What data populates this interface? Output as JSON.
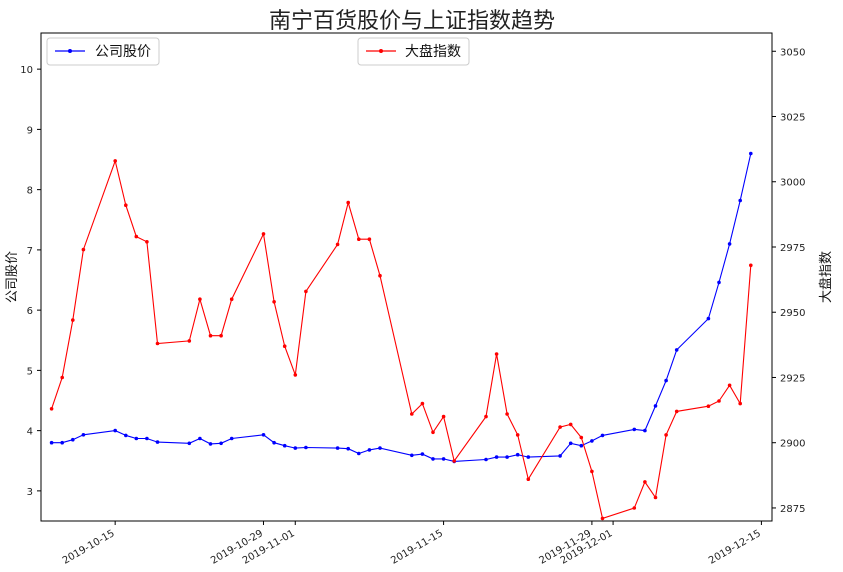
{
  "chart_data": {
    "type": "line",
    "title": "南宁百货股价与上证指数趋势",
    "ylabel_left": "公司股价",
    "ylabel_right": "大盘指数",
    "x_tick_labels": [
      "2019-10-15",
      "2019-10-29",
      "2019-11-01",
      "2019-11-15",
      "2019-11-29",
      "2019-12-01",
      "2019-12-15"
    ],
    "x_range": [
      "2019-10-08",
      "2019-12-16"
    ],
    "ylim_left": [
      2.5,
      10.6
    ],
    "ylim_right": [
      2870,
      3057
    ],
    "left_ticks": [
      3,
      4,
      5,
      6,
      7,
      8,
      9,
      10
    ],
    "right_ticks": [
      2875,
      2900,
      2925,
      2950,
      2975,
      3000,
      3025,
      3050
    ],
    "legend_left_position": "upper left",
    "legend_right_position": "upper center",
    "series": [
      {
        "name": "公司股价",
        "axis": "left",
        "color": "#0000ff",
        "x": [
          "2019-10-09",
          "2019-10-10",
          "2019-10-11",
          "2019-10-12",
          "2019-10-15",
          "2019-10-16",
          "2019-10-17",
          "2019-10-18",
          "2019-10-19",
          "2019-10-22",
          "2019-10-23",
          "2019-10-24",
          "2019-10-25",
          "2019-10-26",
          "2019-10-29",
          "2019-10-30",
          "2019-10-31",
          "2019-11-01",
          "2019-11-02",
          "2019-11-05",
          "2019-11-06",
          "2019-11-07",
          "2019-11-08",
          "2019-11-09",
          "2019-11-12",
          "2019-11-13",
          "2019-11-14",
          "2019-11-15",
          "2019-11-16",
          "2019-11-19",
          "2019-11-20",
          "2019-11-21",
          "2019-11-22",
          "2019-11-23",
          "2019-11-26",
          "2019-11-27",
          "2019-11-28",
          "2019-11-29",
          "2019-11-30",
          "2019-12-03",
          "2019-12-04",
          "2019-12-05",
          "2019-12-06",
          "2019-12-07",
          "2019-12-10",
          "2019-12-11",
          "2019-12-12",
          "2019-12-13",
          "2019-12-14"
        ],
        "values": [
          3.8,
          3.8,
          3.85,
          3.93,
          4.0,
          3.92,
          3.87,
          3.87,
          3.81,
          3.79,
          3.87,
          3.78,
          3.79,
          3.87,
          3.93,
          3.8,
          3.75,
          3.71,
          3.72,
          3.71,
          3.7,
          3.62,
          3.68,
          3.71,
          3.59,
          3.61,
          3.53,
          3.53,
          3.49,
          3.52,
          3.56,
          3.56,
          3.6,
          3.56,
          3.58,
          3.79,
          3.75,
          3.83,
          3.92,
          4.02,
          4.0,
          4.41,
          4.83,
          5.34,
          5.86,
          6.46,
          7.1,
          7.82,
          8.6
        ]
      },
      {
        "name": "大盘指数",
        "axis": "right",
        "color": "#ff0000",
        "x": [
          "2019-10-09",
          "2019-10-10",
          "2019-10-11",
          "2019-10-12",
          "2019-10-15",
          "2019-10-16",
          "2019-10-17",
          "2019-10-18",
          "2019-10-19",
          "2019-10-22",
          "2019-10-23",
          "2019-10-24",
          "2019-10-25",
          "2019-10-26",
          "2019-10-29",
          "2019-10-30",
          "2019-10-31",
          "2019-11-01",
          "2019-11-02",
          "2019-11-05",
          "2019-11-06",
          "2019-11-07",
          "2019-11-08",
          "2019-11-09",
          "2019-11-12",
          "2019-11-13",
          "2019-11-14",
          "2019-11-15",
          "2019-11-16",
          "2019-11-19",
          "2019-11-20",
          "2019-11-21",
          "2019-11-22",
          "2019-11-23",
          "2019-11-26",
          "2019-11-27",
          "2019-11-28",
          "2019-11-29",
          "2019-11-30",
          "2019-12-03",
          "2019-12-04",
          "2019-12-05",
          "2019-12-06",
          "2019-12-07",
          "2019-12-10",
          "2019-12-11",
          "2019-12-12",
          "2019-12-13",
          "2019-12-14"
        ],
        "values": [
          2913,
          2925,
          2947,
          2974,
          3008,
          2991,
          2979,
          2977,
          2938,
          2939,
          2955,
          2941,
          2941,
          2955,
          2980,
          2954,
          2937,
          2926,
          2958,
          2976,
          2992,
          2978,
          2978,
          2964,
          2911,
          2915,
          2904,
          2910,
          2893,
          2910,
          2934,
          2911,
          2903,
          2886,
          2906,
          2907,
          2902,
          2889,
          2871,
          2875,
          2885,
          2879,
          2903,
          2912,
          2914,
          2916,
          2922,
          2915,
          2968
        ]
      }
    ]
  }
}
